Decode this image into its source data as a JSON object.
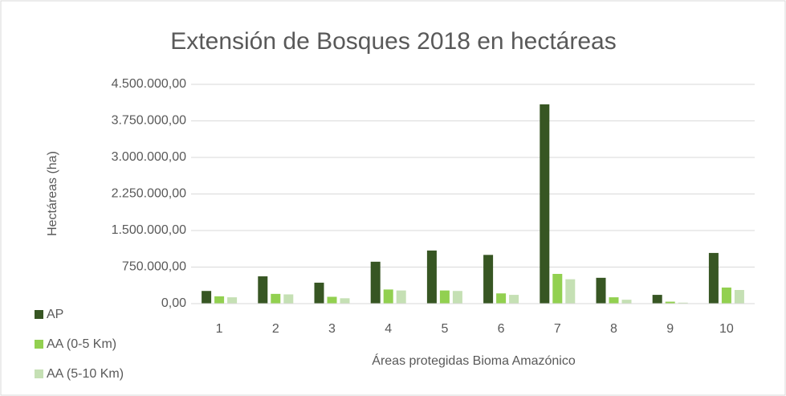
{
  "chart_data": {
    "type": "bar",
    "title": "Extensión de Bosques 2018 en hectáreas",
    "xlabel": "Áreas protegidas Bioma Amazónico",
    "ylabel": "Hectáreas (ha)",
    "categories": [
      "1",
      "2",
      "3",
      "4",
      "5",
      "6",
      "7",
      "8",
      "9",
      "10"
    ],
    "series": [
      {
        "name": "AP",
        "color": "#375623",
        "values": [
          260000,
          560000,
          430000,
          860000,
          1090000,
          1000000,
          4090000,
          530000,
          180000,
          1040000
        ]
      },
      {
        "name": "AA (0-5 Km)",
        "color": "#92d050",
        "values": [
          150000,
          200000,
          140000,
          290000,
          270000,
          210000,
          610000,
          130000,
          40000,
          330000
        ]
      },
      {
        "name": "AA (5-10 Km)",
        "color": "#c5e0b4",
        "values": [
          130000,
          190000,
          110000,
          270000,
          260000,
          180000,
          500000,
          80000,
          20000,
          280000
        ]
      }
    ],
    "ylim": [
      0,
      4500000
    ],
    "yticks": [
      {
        "value": 0,
        "label": "0,00"
      },
      {
        "value": 750000,
        "label": "750.000,00"
      },
      {
        "value": 1500000,
        "label": "1.500.000,00"
      },
      {
        "value": 2250000,
        "label": "2.250.000,00"
      },
      {
        "value": 3000000,
        "label": "3.000.000,00"
      },
      {
        "value": 3750000,
        "label": "3.750.000,00"
      },
      {
        "value": 4500000,
        "label": "4.500.000,00"
      }
    ],
    "grid": true,
    "legend": "bottom-left"
  }
}
